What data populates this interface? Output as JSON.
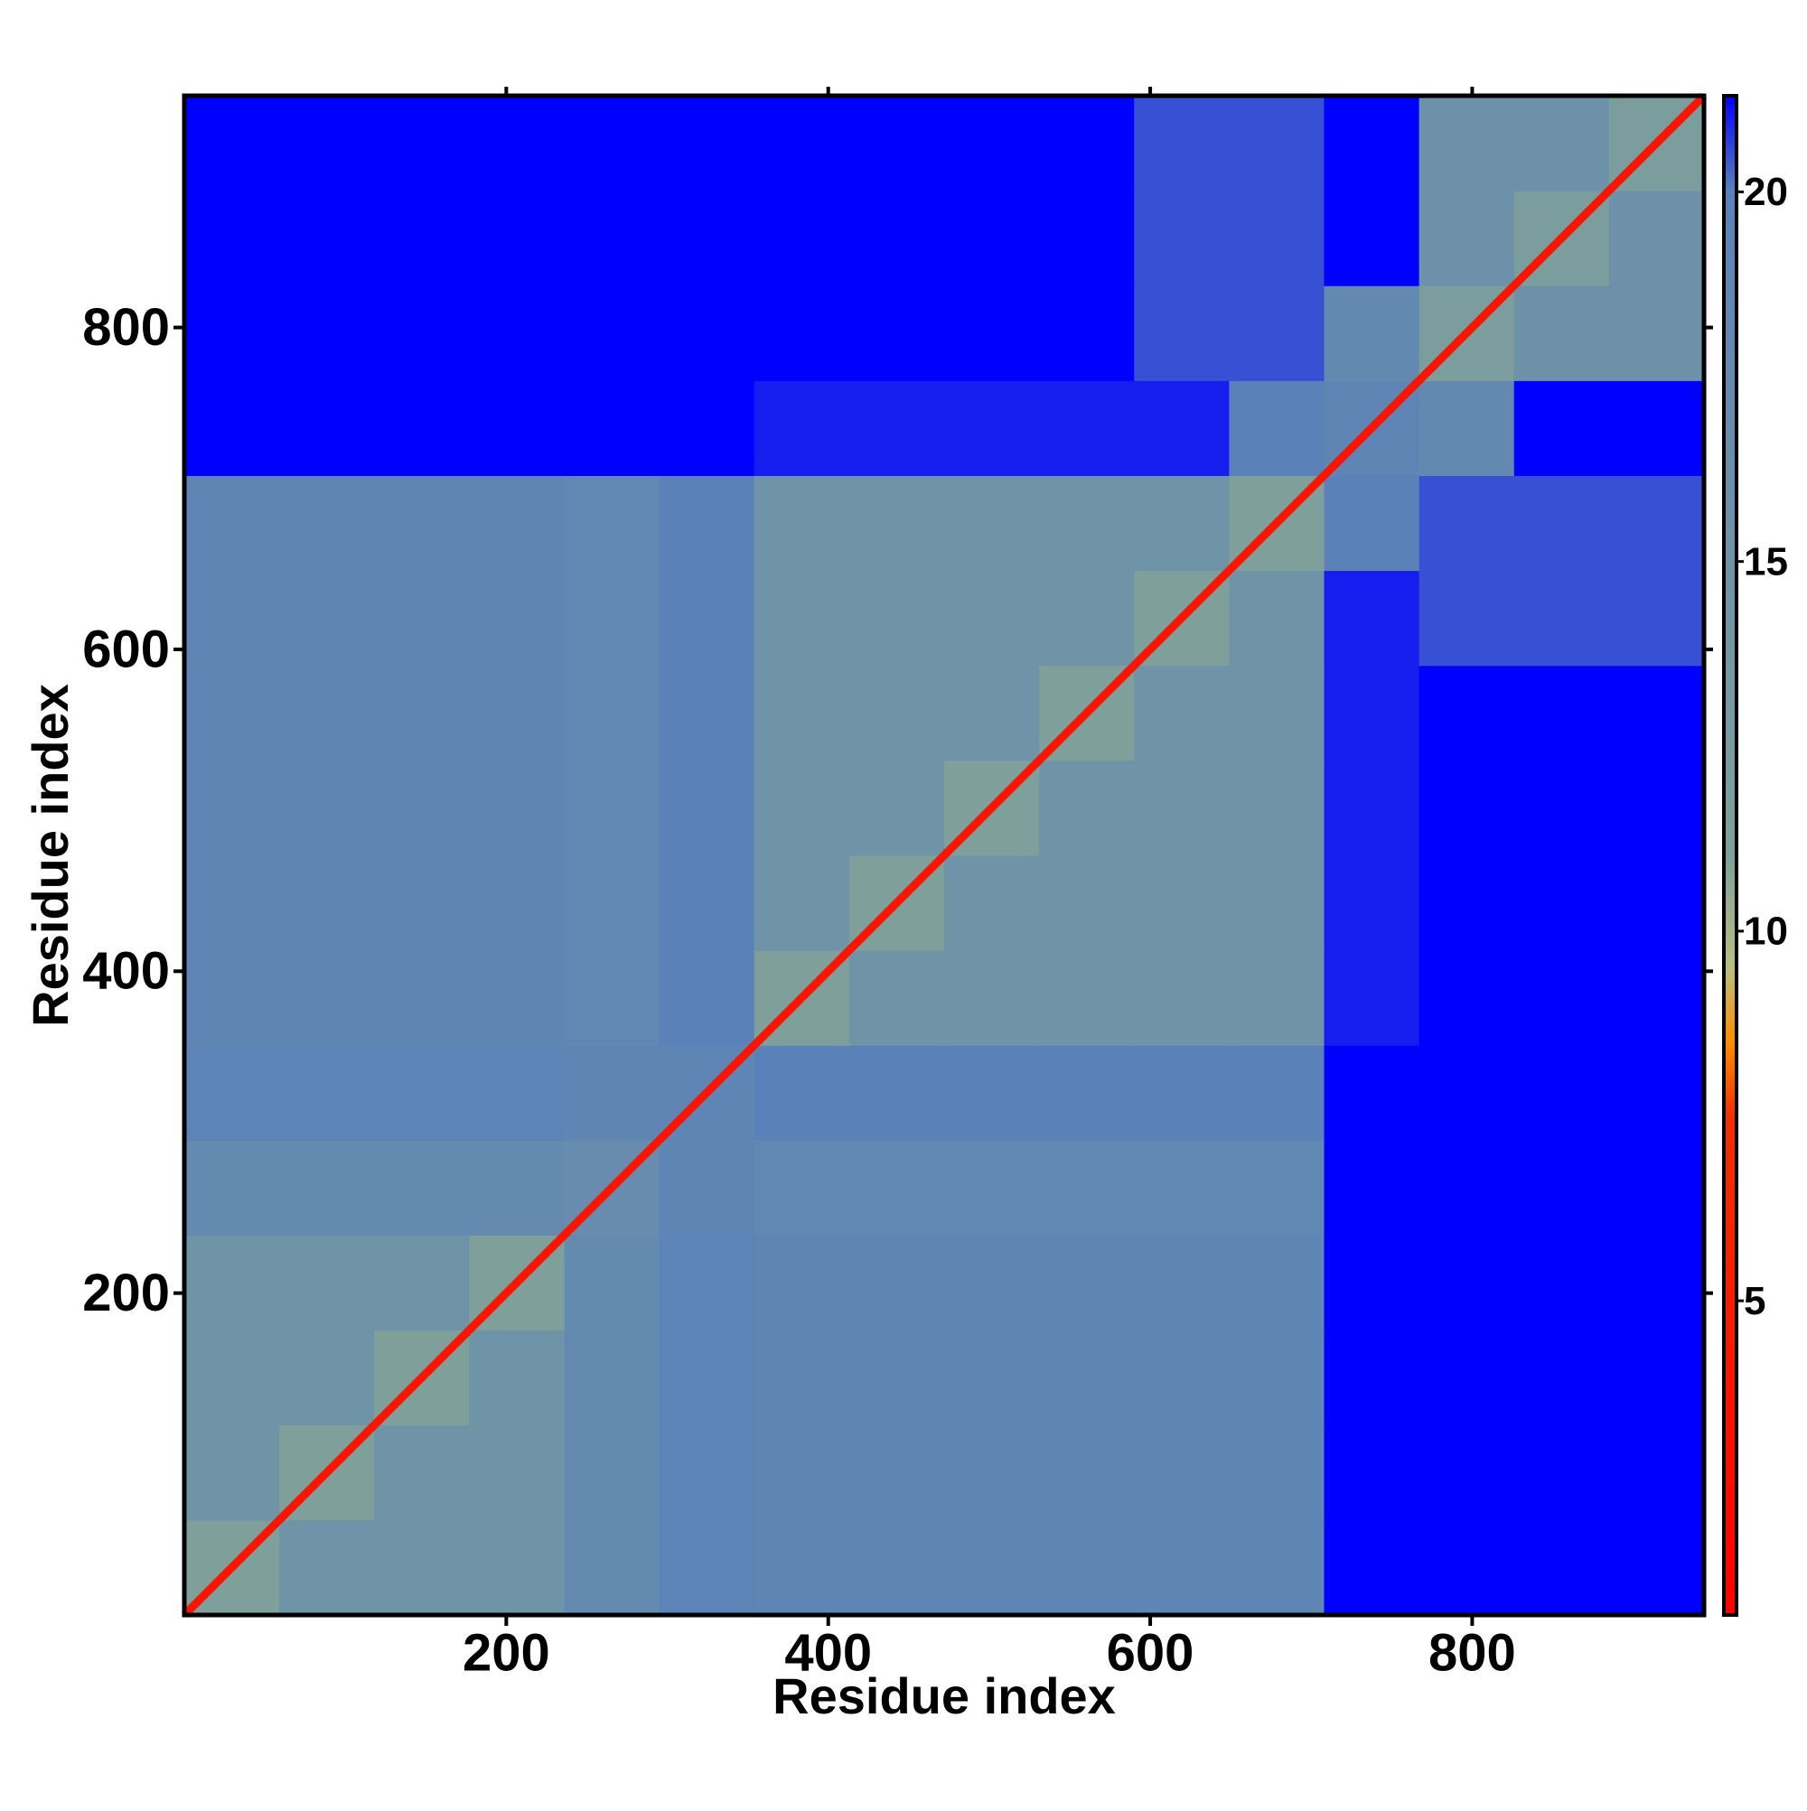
{
  "chart_data": {
    "type": "heatmap",
    "xlabel": "Residue index",
    "ylabel": "Residue index",
    "xlim": [
      0,
      944
    ],
    "ylim": [
      0,
      944
    ],
    "xticks": [
      200,
      400,
      600,
      800
    ],
    "yticks": [
      200,
      400,
      600,
      800
    ],
    "bins": [
      0,
      59,
      118,
      177,
      236,
      295,
      354,
      413,
      472,
      531,
      590,
      649,
      708,
      767,
      826,
      885,
      944
    ],
    "z": [
      [
        11,
        15,
        15,
        15,
        17.5,
        19.5,
        19,
        19,
        19,
        19,
        19,
        19,
        21.3,
        21.3,
        21.3,
        21.3
      ],
      [
        15,
        11,
        15,
        15,
        17.5,
        19.5,
        19,
        19,
        19,
        19,
        19,
        19,
        21.3,
        21.3,
        21.3,
        21.3
      ],
      [
        15,
        15,
        11,
        15,
        17.5,
        19.5,
        19,
        19,
        19,
        19,
        19,
        19,
        21.3,
        21.3,
        21.3,
        21.3
      ],
      [
        15,
        15,
        15,
        11,
        17.5,
        19.5,
        19,
        19,
        19,
        19,
        19,
        19,
        21.3,
        21.3,
        21.3,
        21.3
      ],
      [
        17.5,
        17.5,
        17.5,
        17.5,
        17,
        19,
        18.5,
        18.5,
        18.5,
        18.5,
        18.5,
        18.5,
        21.3,
        21.3,
        21.3,
        21.3
      ],
      [
        19.5,
        19.5,
        19.5,
        19.5,
        19,
        19,
        20,
        20,
        20,
        20,
        20,
        20,
        21.3,
        21.3,
        21.3,
        21.3
      ],
      [
        19,
        19,
        19,
        19,
        18.5,
        20,
        11,
        15,
        15,
        15,
        15,
        15,
        21,
        21.3,
        21.3,
        21.3
      ],
      [
        19,
        19,
        19,
        19,
        18.5,
        20,
        15,
        11,
        15,
        15,
        15,
        15,
        21,
        21.3,
        21.3,
        21.3
      ],
      [
        19,
        19,
        19,
        19,
        18.5,
        20,
        15,
        15,
        11,
        15,
        15,
        15,
        21,
        21.3,
        21.3,
        21.3
      ],
      [
        19,
        19,
        19,
        19,
        18.5,
        20,
        15,
        15,
        15,
        11,
        15,
        15,
        21,
        21.3,
        21.3,
        21.3
      ],
      [
        19,
        19,
        19,
        19,
        18.5,
        20,
        15,
        15,
        15,
        15,
        11,
        15,
        21,
        20.5,
        20.5,
        20.5
      ],
      [
        19,
        19,
        19,
        19,
        18.5,
        20,
        15,
        15,
        15,
        15,
        15,
        11,
        20,
        20.5,
        20.5,
        20.5
      ],
      [
        21.3,
        21.3,
        21.3,
        21.3,
        21.3,
        21.3,
        21,
        21,
        21,
        21,
        21,
        20,
        19,
        18,
        21.3,
        21.3
      ],
      [
        21.3,
        21.3,
        21.3,
        21.3,
        21.3,
        21.3,
        21.3,
        21.3,
        21.3,
        21.3,
        20.5,
        20.5,
        18,
        12,
        15.5,
        15.5
      ],
      [
        21.3,
        21.3,
        21.3,
        21.3,
        21.3,
        21.3,
        21.3,
        21.3,
        21.3,
        21.3,
        20.5,
        20.5,
        21.3,
        15.5,
        12,
        15.5
      ],
      [
        21.3,
        21.3,
        21.3,
        21.3,
        21.3,
        21.3,
        21.3,
        21.3,
        21.3,
        21.3,
        20.5,
        20.5,
        21.3,
        15.5,
        15.5,
        12
      ]
    ],
    "diagonal_value": 3.8,
    "clim": [
      0.75,
      21.3
    ],
    "cticks": [
      5,
      10,
      15,
      20
    ],
    "colorscale": [
      [
        0.75,
        "#ff0000"
      ],
      [
        7.5,
        "#f03000"
      ],
      [
        8.5,
        "#ff8c00"
      ],
      [
        9.5,
        "#b8c080"
      ],
      [
        11,
        "#7fa09a"
      ],
      [
        20,
        "#5b82b8"
      ],
      [
        21.3,
        "#0000ff"
      ]
    ]
  }
}
